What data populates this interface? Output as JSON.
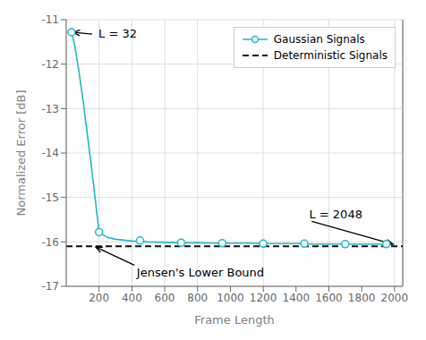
{
  "chart_data": {
    "type": "line",
    "xlabel": "Frame Length",
    "ylabel": "Normalized Error [dB]",
    "series": [
      {
        "name": "Gaussian Signals",
        "type": "line",
        "color": "#22B8C8",
        "x": [
          32,
          50,
          75,
          100,
          150,
          200,
          250,
          300,
          400,
          500,
          600,
          700,
          800,
          900,
          1000,
          1100,
          1200,
          1300,
          1400,
          1500,
          1600,
          1700,
          1800,
          1900,
          2000
        ],
        "values": [
          -11.28,
          -11.55,
          -12.1,
          -12.75,
          -14.2,
          -15.78,
          -15.9,
          -15.94,
          -15.98,
          -16.0,
          -16.01,
          -16.02,
          -16.02,
          -16.03,
          -16.03,
          -16.03,
          -16.04,
          -16.04,
          -16.04,
          -16.05,
          -16.05,
          -16.05,
          -16.05,
          -16.05,
          -16.06
        ]
      },
      {
        "type": "scatter",
        "marker": "circle",
        "color": "#22B8C8",
        "x": [
          32,
          200,
          450,
          700,
          950,
          1200,
          1450,
          1700,
          1950
        ],
        "values": [
          -11.28,
          -15.78,
          -15.97,
          -16.02,
          -16.03,
          -16.04,
          -16.04,
          -16.05,
          -16.05
        ]
      },
      {
        "name": "Deterministic Signals",
        "type": "hline",
        "color": "#111111",
        "line_style": "dashed",
        "values": [
          -16.1
        ]
      }
    ],
    "xlim": [
      0,
      2050
    ],
    "ylim": [
      -17,
      -11
    ],
    "xticks": [
      200,
      400,
      600,
      800,
      1000,
      1200,
      1400,
      1600,
      1800,
      2000
    ],
    "yticks": [
      -17,
      -16,
      -15,
      -14,
      -13,
      -12,
      -11
    ],
    "grid": true,
    "legend": "upper right",
    "annotations": [
      {
        "text": "L = 32",
        "xy": [
          32,
          -11.28
        ],
        "xytext": [
          175,
          -11.33
        ]
      },
      {
        "text": "L = 2048",
        "xy": [
          2000,
          -16.06
        ],
        "xytext": [
          1480,
          -15.52
        ]
      },
      {
        "text": "Jensen's Lower Bound",
        "xy": [
          170,
          -16.1
        ],
        "xytext": [
          430,
          -16.55
        ]
      }
    ]
  }
}
